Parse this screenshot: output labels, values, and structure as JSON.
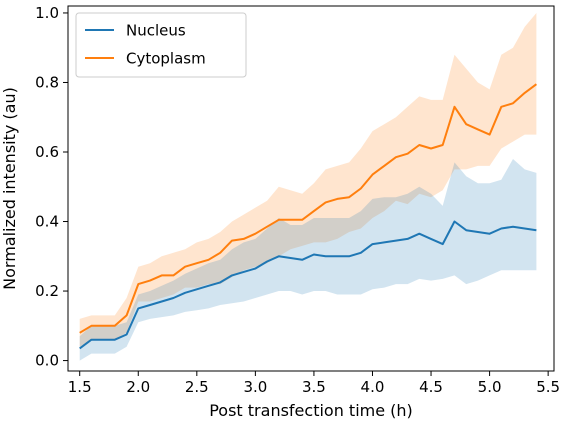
{
  "chart_data": {
    "type": "line",
    "title": "",
    "xlabel": "Post transfection time (h)",
    "ylabel": "Normalized intensity (au)",
    "xlim": [
      1.4,
      5.55
    ],
    "ylim": [
      -0.03,
      1.02
    ],
    "xticks": [
      1.5,
      2.0,
      2.5,
      3.0,
      3.5,
      4.0,
      4.5,
      5.0,
      5.5
    ],
    "xtick_labels": [
      "1.5",
      "2.0",
      "2.5",
      "3.0",
      "3.5",
      "4.0",
      "4.5",
      "5.0",
      "5.5"
    ],
    "yticks": [
      0.0,
      0.2,
      0.4,
      0.6,
      0.8,
      1.0
    ],
    "ytick_labels": [
      "0.0",
      "0.2",
      "0.4",
      "0.6",
      "0.8",
      "1.0"
    ],
    "grid": false,
    "legend_position": "top-left",
    "x": [
      1.5,
      1.6,
      1.7,
      1.8,
      1.9,
      2.0,
      2.1,
      2.2,
      2.3,
      2.4,
      2.5,
      2.6,
      2.7,
      2.8,
      2.9,
      3.0,
      3.1,
      3.2,
      3.3,
      3.4,
      3.5,
      3.6,
      3.7,
      3.8,
      3.9,
      4.0,
      4.1,
      4.2,
      4.3,
      4.4,
      4.5,
      4.6,
      4.7,
      4.8,
      4.9,
      5.0,
      5.1,
      5.2,
      5.3,
      5.4
    ],
    "series": [
      {
        "name": "Cytoplasm",
        "color": "#ff7f0e",
        "values": [
          0.08,
          0.1,
          0.1,
          0.1,
          0.13,
          0.22,
          0.23,
          0.245,
          0.245,
          0.27,
          0.28,
          0.29,
          0.31,
          0.345,
          0.35,
          0.365,
          0.385,
          0.405,
          0.405,
          0.405,
          0.43,
          0.455,
          0.465,
          0.47,
          0.495,
          0.535,
          0.56,
          0.585,
          0.595,
          0.62,
          0.61,
          0.62,
          0.73,
          0.68,
          0.665,
          0.65,
          0.73,
          0.74,
          0.77,
          0.795
        ],
        "lower": [
          0.04,
          0.06,
          0.06,
          0.06,
          0.08,
          0.17,
          0.17,
          0.18,
          0.19,
          0.21,
          0.21,
          0.22,
          0.22,
          0.24,
          0.26,
          0.27,
          0.28,
          0.3,
          0.32,
          0.33,
          0.34,
          0.34,
          0.35,
          0.37,
          0.38,
          0.41,
          0.43,
          0.46,
          0.45,
          0.48,
          0.47,
          0.49,
          0.55,
          0.55,
          0.56,
          0.56,
          0.61,
          0.63,
          0.65,
          0.65
        ],
        "upper": [
          0.12,
          0.13,
          0.13,
          0.13,
          0.18,
          0.27,
          0.28,
          0.3,
          0.31,
          0.32,
          0.34,
          0.35,
          0.37,
          0.4,
          0.42,
          0.44,
          0.46,
          0.5,
          0.49,
          0.48,
          0.51,
          0.55,
          0.56,
          0.57,
          0.61,
          0.66,
          0.68,
          0.7,
          0.73,
          0.76,
          0.75,
          0.75,
          0.88,
          0.84,
          0.8,
          0.78,
          0.88,
          0.9,
          0.96,
          1.0
        ]
      },
      {
        "name": "Nucleus",
        "color": "#1f77b4",
        "values": [
          0.035,
          0.06,
          0.06,
          0.06,
          0.075,
          0.15,
          0.16,
          0.17,
          0.18,
          0.195,
          0.205,
          0.215,
          0.225,
          0.245,
          0.255,
          0.265,
          0.285,
          0.3,
          0.295,
          0.29,
          0.305,
          0.3,
          0.3,
          0.3,
          0.31,
          0.335,
          0.34,
          0.345,
          0.35,
          0.365,
          0.35,
          0.335,
          0.4,
          0.375,
          0.37,
          0.365,
          0.38,
          0.385,
          0.38,
          0.375
        ],
        "lower": [
          0.0,
          0.02,
          0.02,
          0.02,
          0.04,
          0.11,
          0.12,
          0.125,
          0.13,
          0.14,
          0.145,
          0.15,
          0.16,
          0.165,
          0.17,
          0.18,
          0.19,
          0.2,
          0.2,
          0.19,
          0.2,
          0.2,
          0.19,
          0.19,
          0.19,
          0.205,
          0.21,
          0.22,
          0.22,
          0.235,
          0.23,
          0.235,
          0.245,
          0.22,
          0.23,
          0.245,
          0.26,
          0.26,
          0.26,
          0.26
        ],
        "upper": [
          0.07,
          0.1,
          0.1,
          0.1,
          0.11,
          0.19,
          0.2,
          0.215,
          0.23,
          0.25,
          0.265,
          0.28,
          0.29,
          0.32,
          0.34,
          0.35,
          0.38,
          0.41,
          0.39,
          0.39,
          0.41,
          0.41,
          0.41,
          0.41,
          0.43,
          0.465,
          0.47,
          0.47,
          0.48,
          0.5,
          0.48,
          0.445,
          0.57,
          0.53,
          0.51,
          0.51,
          0.52,
          0.58,
          0.55,
          0.54
        ]
      }
    ],
    "legend": [
      {
        "name": "Nucleus",
        "color": "#1f77b4"
      },
      {
        "name": "Cytoplasm",
        "color": "#ff7f0e"
      }
    ]
  }
}
